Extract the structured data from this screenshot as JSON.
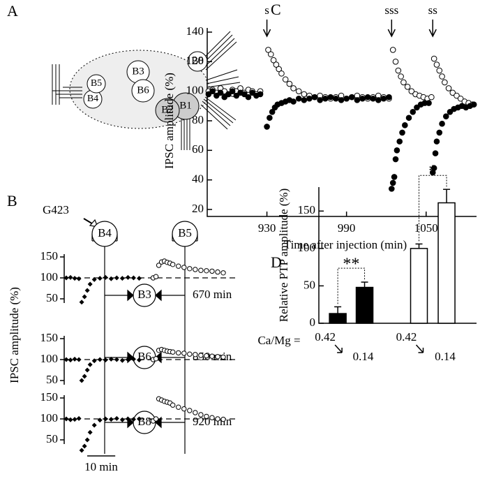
{
  "figure": {
    "panel_labels": [
      "A",
      "B",
      "C",
      "D"
    ],
    "diagram_A": {
      "neurons": [
        "B1",
        "B2",
        "B3",
        "B4",
        "B5",
        "B6",
        "B8"
      ]
    },
    "diagram_B": {
      "injected": "G423",
      "presynaptic": [
        "B4",
        "B5"
      ],
      "postsynaptic": [
        "B3",
        "B6",
        "B8"
      ],
      "times": [
        "670 min",
        "850 min",
        "920 min"
      ],
      "ylabel": "IPSC amplitude (%)",
      "scale_bar": {
        "value": 10,
        "label": "10 min"
      }
    }
  },
  "chart_data": [
    {
      "type": "scatter",
      "ylabel": "IPSC amplitude (%)",
      "xlabel": "Time after injection (min)",
      "xlim": [
        885,
        1088
      ],
      "xticks": [
        930,
        990,
        1050
      ],
      "ylim": [
        20,
        140
      ],
      "yticks": [
        20,
        40,
        60,
        80,
        100,
        120,
        140
      ],
      "annotations": [
        {
          "x": 930,
          "text": "s"
        },
        {
          "x": 1024,
          "text": "sss"
        },
        {
          "x": 1055,
          "text": "ss"
        }
      ],
      "series": [
        {
          "color": "#000000",
          "fill": "#ffffff",
          "x": [
            886,
            889,
            892,
            895,
            898,
            901,
            904,
            907,
            910,
            913,
            916,
            919,
            922,
            925,
            931,
            933,
            935,
            937,
            939,
            941,
            944,
            947,
            950,
            954,
            958,
            962,
            966,
            970,
            974,
            978,
            982,
            986,
            990,
            994,
            998,
            1002,
            1006,
            1010,
            1014,
            1018,
            1022,
            1025,
            1027,
            1029,
            1031,
            1033,
            1036,
            1039,
            1042,
            1045,
            1048,
            1051,
            1054,
            1056,
            1058,
            1060,
            1062,
            1064,
            1067,
            1070,
            1073,
            1076,
            1079,
            1082,
            1085
          ],
          "values": [
            100,
            101,
            99,
            102,
            100,
            98,
            101,
            100,
            102,
            99,
            101,
            100,
            98,
            100,
            128,
            125,
            121,
            118,
            115,
            112,
            108,
            105,
            102,
            100,
            98,
            97,
            96,
            97,
            96,
            95,
            96,
            97,
            95,
            96,
            97,
            96,
            95,
            96,
            97,
            96,
            95,
            128,
            120,
            114,
            110,
            106,
            103,
            100,
            98,
            97,
            96,
            95,
            96,
            122,
            118,
            114,
            110,
            106,
            102,
            99,
            97,
            95,
            93,
            92,
            91
          ]
        },
        {
          "color": "#000000",
          "fill": "#000000",
          "x": [
            886,
            889,
            892,
            895,
            898,
            901,
            904,
            907,
            910,
            913,
            916,
            919,
            922,
            925,
            930,
            932,
            934,
            936,
            938,
            941,
            944,
            947,
            950,
            954,
            958,
            962,
            966,
            970,
            974,
            978,
            982,
            986,
            990,
            994,
            998,
            1002,
            1006,
            1010,
            1014,
            1018,
            1022,
            1024,
            1025,
            1026,
            1027,
            1028,
            1030,
            1032,
            1034,
            1037,
            1040,
            1043,
            1046,
            1049,
            1052,
            1055,
            1056,
            1057,
            1058,
            1060,
            1062,
            1065,
            1068,
            1071,
            1074,
            1077,
            1080,
            1083,
            1086
          ],
          "values": [
            98,
            100,
            97,
            99,
            96,
            98,
            100,
            97,
            99,
            98,
            96,
            99,
            97,
            98,
            76,
            82,
            86,
            89,
            91,
            92,
            93,
            94,
            93,
            95,
            94,
            95,
            96,
            94,
            95,
            96,
            95,
            94,
            95,
            96,
            94,
            95,
            96,
            95,
            94,
            95,
            96,
            34,
            38,
            42,
            54,
            60,
            66,
            72,
            77,
            82,
            86,
            89,
            91,
            92,
            92,
            45,
            48,
            58,
            66,
            72,
            78,
            83,
            86,
            88,
            89,
            90,
            89,
            90,
            91
          ]
        }
      ]
    },
    {
      "type": "bar",
      "ylabel": "Relative PTP amplitude (%)",
      "xlabel": "Ca/Mg =",
      "categories": [
        "0.42",
        "0.14",
        "0.42",
        "0.14"
      ],
      "values": [
        13,
        48,
        100,
        161
      ],
      "errors": [
        9,
        7,
        6,
        18
      ],
      "colors": [
        "#000000",
        "#000000",
        "#ffffff",
        "#ffffff"
      ],
      "ylim": [
        0,
        182
      ],
      "yticks": [
        0,
        50,
        100,
        150
      ],
      "significance": [
        "**",
        "*"
      ]
    },
    {
      "type": "trace",
      "xlim": [
        0,
        56
      ],
      "ylim": [
        20,
        160
      ],
      "yticks": [
        50,
        100,
        150
      ],
      "reference_line": 100,
      "series": [
        {
          "marker": "diamond",
          "x": [
            0,
            1.5,
            3,
            4.5,
            5.5,
            6.5,
            7.5,
            8.5,
            10,
            12,
            14,
            16,
            18,
            20,
            22,
            24,
            26
          ],
          "values": [
            100,
            101,
            99,
            98,
            42,
            55,
            70,
            85,
            96,
            99,
            101,
            98,
            100,
            99,
            101,
            100,
            99
          ]
        },
        {
          "marker": "circle",
          "x": [
            31,
            32,
            33,
            34,
            35,
            36,
            37,
            38,
            40,
            42,
            44,
            46,
            48,
            50,
            52,
            54,
            56
          ],
          "values": [
            100,
            103,
            130,
            138,
            140,
            137,
            135,
            132,
            128,
            125,
            122,
            120,
            118,
            117,
            116,
            114,
            112
          ]
        }
      ]
    },
    {
      "type": "trace",
      "xlim": [
        0,
        56
      ],
      "ylim": [
        20,
        160
      ],
      "yticks": [
        50,
        100,
        150
      ],
      "reference_line": 100,
      "series": [
        {
          "marker": "diamond",
          "x": [
            0,
            1.5,
            3,
            4.5,
            5.5,
            6.5,
            7.5,
            8.5,
            10,
            12,
            14,
            16,
            18,
            20,
            22,
            24,
            26
          ],
          "values": [
            100,
            99,
            101,
            100,
            50,
            60,
            75,
            88,
            97,
            100,
            99,
            101,
            100,
            98,
            100,
            101,
            99
          ]
        },
        {
          "marker": "circle",
          "x": [
            31,
            32,
            33,
            34,
            35,
            36,
            37,
            38,
            40,
            42,
            44,
            46,
            48,
            50,
            52,
            54,
            56
          ],
          "values": [
            100,
            102,
            122,
            124,
            122,
            120,
            119,
            118,
            116,
            115,
            113,
            112,
            110,
            109,
            108,
            107,
            106
          ]
        }
      ]
    },
    {
      "type": "trace",
      "xlim": [
        0,
        56
      ],
      "ylim": [
        20,
        160
      ],
      "yticks": [
        50,
        100,
        150
      ],
      "reference_line": 100,
      "series": [
        {
          "marker": "diamond",
          "x": [
            0,
            1.5,
            3,
            4.5,
            5.5,
            6.5,
            7.5,
            8.5,
            10,
            12,
            14,
            16,
            18,
            20,
            22,
            24,
            26
          ],
          "values": [
            100,
            98,
            99,
            101,
            25,
            35,
            50,
            68,
            85,
            97,
            100,
            99,
            101,
            98,
            100,
            99,
            100
          ]
        },
        {
          "marker": "circle",
          "x": [
            31,
            32,
            33,
            34,
            35,
            36,
            37,
            38,
            40,
            42,
            44,
            46,
            48,
            50,
            52,
            54,
            56
          ],
          "values": [
            95,
            100,
            148,
            145,
            142,
            140,
            138,
            133,
            128,
            124,
            120,
            115,
            110,
            106,
            103,
            100,
            99
          ]
        }
      ]
    }
  ]
}
